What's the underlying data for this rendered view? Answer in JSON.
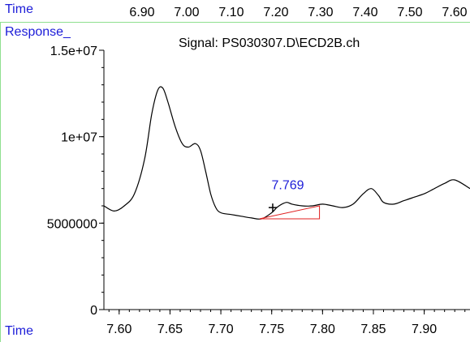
{
  "header": {
    "time_label": "Time",
    "response_label": "Response_",
    "top_ticks": [
      "6.90",
      "7.00",
      "7.10",
      "7.20",
      "7.30",
      "7.40",
      "7.50",
      "7.60"
    ]
  },
  "footer": {
    "time_label": "Time"
  },
  "colors": {
    "label_blue": "#1c1cd8",
    "rule_green": "#8fe08f",
    "trace": "#000000",
    "baseline_marker": "#e02020"
  },
  "chart_data": {
    "type": "line",
    "title": "Signal: PS030307.D\\ECD2B.ch",
    "xlabel": "Time",
    "ylabel": "Response_",
    "xlim": [
      7.585,
      7.945
    ],
    "ylim": [
      0,
      15000000
    ],
    "xticks": [
      7.6,
      7.65,
      7.7,
      7.75,
      7.8,
      7.85,
      7.9
    ],
    "xtick_labels": [
      "7.60",
      "7.65",
      "7.70",
      "7.75",
      "7.80",
      "7.85",
      "7.90"
    ],
    "yticks": [
      0,
      5000000,
      10000000,
      15000000
    ],
    "ytick_labels": [
      "0",
      "5000000",
      "1e+07",
      "1.5e+07"
    ],
    "series": [
      {
        "x": [
          7.585,
          7.595,
          7.605,
          7.615,
          7.625,
          7.632,
          7.638,
          7.643,
          7.648,
          7.655,
          7.662,
          7.668,
          7.675,
          7.68,
          7.685,
          7.69,
          7.695,
          7.7,
          7.71,
          7.72,
          7.73,
          7.74,
          7.75,
          7.755,
          7.76,
          7.765,
          7.77,
          7.78,
          7.79,
          7.8,
          7.81,
          7.82,
          7.83,
          7.84,
          7.848,
          7.855,
          7.86,
          7.87,
          7.88,
          7.89,
          7.9,
          7.91,
          7.92,
          7.93,
          7.945
        ],
        "y": [
          6000000,
          5700000,
          6000000,
          6700000,
          8700000,
          11300000,
          12700000,
          12800000,
          12000000,
          10600000,
          9600000,
          9400000,
          9600000,
          9200000,
          8000000,
          6700000,
          5900000,
          5600000,
          5500000,
          5400000,
          5300000,
          5250000,
          5600000,
          5900000,
          6100000,
          6200000,
          6100000,
          6000000,
          6000000,
          6100000,
          6000000,
          5900000,
          6100000,
          6700000,
          7000000,
          6600000,
          6200000,
          6100000,
          6300000,
          6500000,
          6700000,
          7000000,
          7300000,
          7500000,
          7000000
        ]
      }
    ],
    "annotations": [
      {
        "text": "7.769",
        "x": 7.769,
        "y": 6200000
      }
    ],
    "baseline_marker": {
      "x_start": 7.738,
      "x_end": 7.797,
      "y_start": 5250000,
      "y_end": 6000000
    },
    "cursor_marker": {
      "x": 7.751,
      "y": 5900000
    }
  }
}
